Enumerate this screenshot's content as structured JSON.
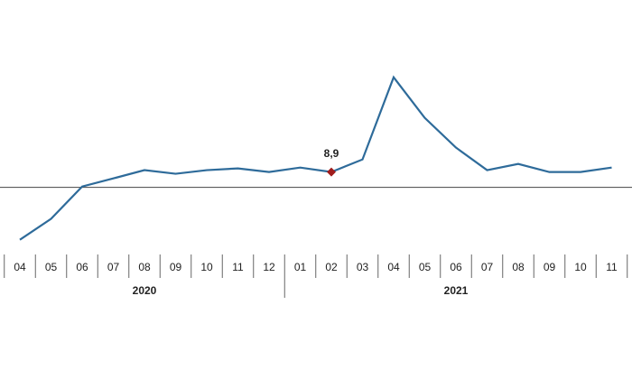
{
  "chart_data": {
    "type": "line",
    "categories": [
      "04",
      "05",
      "06",
      "07",
      "08",
      "09",
      "10",
      "11",
      "12",
      "01",
      "02",
      "03",
      "04",
      "05",
      "06",
      "07",
      "08",
      "09",
      "10",
      "11"
    ],
    "years": [
      "2020",
      "2021"
    ],
    "series": [
      {
        "color": "#2e6b9a",
        "values": [
          -30.4,
          -18.3,
          0.5,
          5.2,
          10.0,
          7.9,
          10.0,
          11.0,
          8.9,
          11.5,
          8.9,
          16.2,
          63.9,
          40.3,
          23.1,
          10.0,
          13.6,
          8.9,
          8.9,
          11.5
        ],
        "value_labels": [
          null,
          null,
          null,
          null,
          null,
          null,
          null,
          null,
          null,
          null,
          "8,9",
          null,
          null,
          null,
          null,
          null,
          null,
          null,
          null,
          null
        ],
        "highlight_color": "#a01c1c"
      }
    ],
    "ylim": [
      -40,
      70
    ]
  }
}
